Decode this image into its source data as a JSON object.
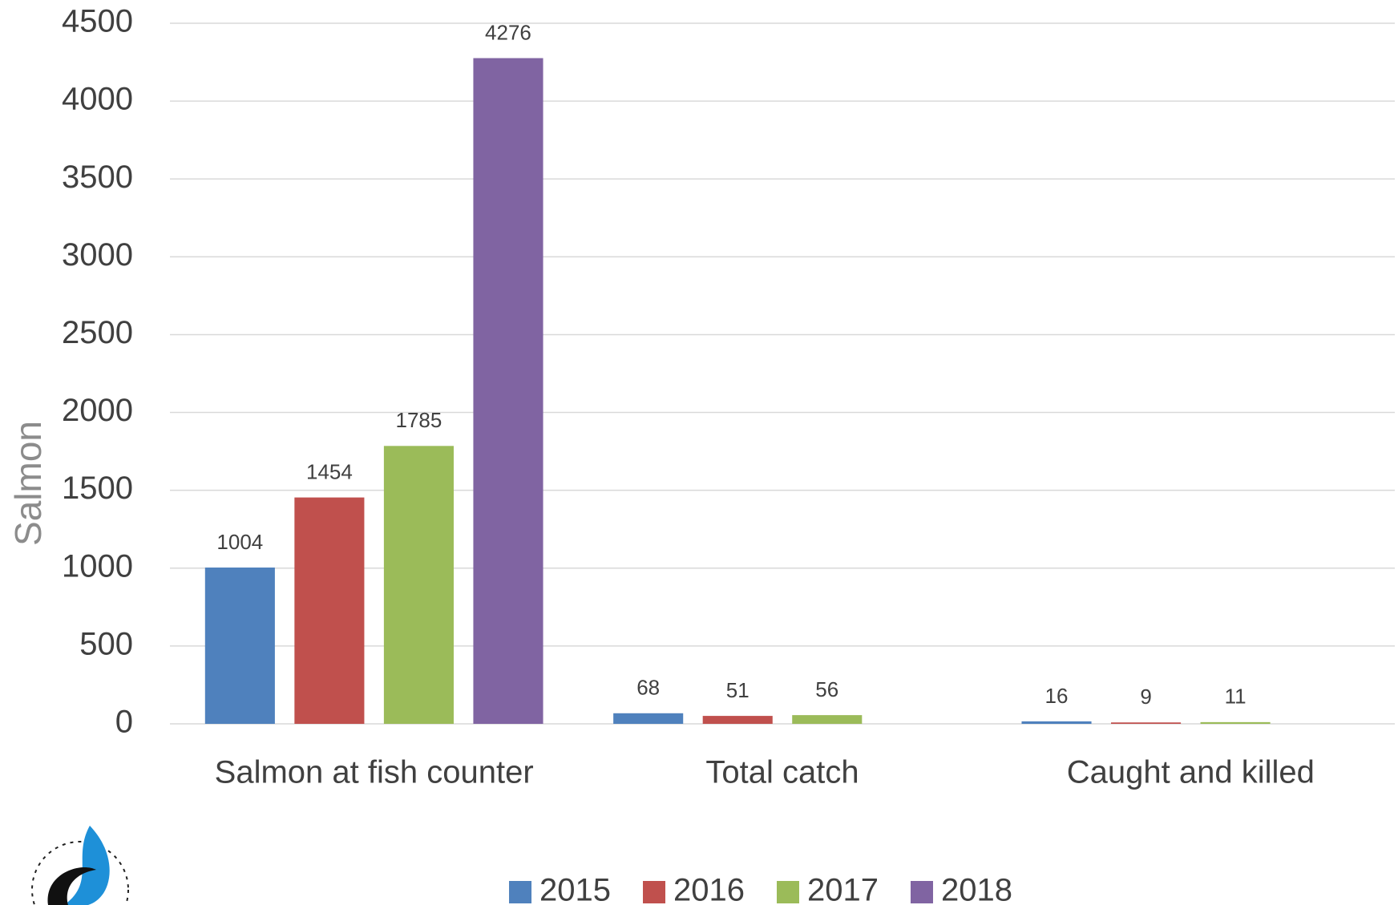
{
  "chart_data": {
    "type": "bar",
    "y_label": "Salmon",
    "categories": [
      "Salmon at fish counter",
      "Total catch",
      "Caught and killed"
    ],
    "series": [
      {
        "name": "2015",
        "color": "#4f81bd",
        "values": [
          1004,
          68,
          16
        ]
      },
      {
        "name": "2016",
        "color": "#c0504d",
        "values": [
          1454,
          51,
          9
        ]
      },
      {
        "name": "2017",
        "color": "#9bbb59",
        "values": [
          1785,
          56,
          11
        ]
      },
      {
        "name": "2018",
        "color": "#8064a2",
        "values": [
          4276,
          null,
          null
        ]
      }
    ],
    "ylim": [
      0,
      4500
    ],
    "yticks": [
      0,
      500,
      1000,
      1500,
      2000,
      2500,
      3000,
      3500,
      4000,
      4500
    ],
    "grid": true,
    "legend": "bottom"
  }
}
